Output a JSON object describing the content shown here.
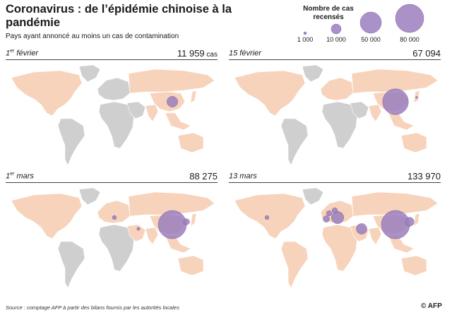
{
  "header": {
    "title": "Coronavirus : de l’épidémie chinoise à la pandémie",
    "subtitle": "Pays ayant annoncé au moins un cas de contamination"
  },
  "legend": {
    "title": "Nombre de cas recensés",
    "entries": [
      {
        "label": "1 000",
        "value": 1000
      },
      {
        "label": "10 000",
        "value": 10000
      },
      {
        "label": "50 000",
        "value": 50000
      },
      {
        "label": "80 000",
        "value": 80000
      }
    ]
  },
  "colors": {
    "affected": "#f7d3bc",
    "unaffected": "#cfcfcf",
    "bubble": "#9b7fbe"
  },
  "panels": [
    {
      "date_day": "1",
      "date_sup": "er",
      "date_month": " février",
      "count": "11 959",
      "unit": " cas"
    },
    {
      "date_day": "15 février",
      "date_sup": "",
      "date_month": "",
      "count": "67 094",
      "unit": ""
    },
    {
      "date_day": "1",
      "date_sup": "er",
      "date_month": " mars",
      "count": "88 275",
      "unit": ""
    },
    {
      "date_day": "13 mars",
      "date_sup": "",
      "date_month": "",
      "count": "133 970",
      "unit": ""
    }
  ],
  "map_data": {
    "countries": [
      "north-america",
      "greenland",
      "south-america",
      "europe",
      "africa",
      "russia-asia",
      "middle-east",
      "india",
      "china",
      "southeast-asia",
      "australia",
      "japan"
    ],
    "affected": [
      [
        "north-america",
        "russia-asia",
        "india",
        "china",
        "southeast-asia",
        "australia",
        "japan"
      ],
      [
        "north-america",
        "russia-asia",
        "india",
        "china",
        "southeast-asia",
        "australia",
        "japan",
        "europe"
      ],
      [
        "north-america",
        "russia-asia",
        "india",
        "china",
        "southeast-asia",
        "australia",
        "japan",
        "europe",
        "middle-east"
      ],
      [
        "north-america",
        "russia-asia",
        "india",
        "china",
        "southeast-asia",
        "australia",
        "japan",
        "europe",
        "middle-east",
        "south-america",
        "africa"
      ]
    ],
    "outbreaks": [
      [
        {
          "place": "China",
          "cases": 11821
        }
      ],
      [
        {
          "place": "China",
          "cases": 66492
        },
        {
          "place": "Japan",
          "cases": 338
        }
      ],
      [
        {
          "place": "China",
          "cases": 79968
        },
        {
          "place": "South Korea",
          "cases": 3736
        },
        {
          "place": "Iran",
          "cases": 978
        },
        {
          "place": "Italy",
          "cases": 1694
        }
      ],
      [
        {
          "place": "China",
          "cases": 80813
        },
        {
          "place": "Italy",
          "cases": 15113
        },
        {
          "place": "Iran",
          "cases": 11364
        },
        {
          "place": "South Korea",
          "cases": 7979
        },
        {
          "place": "Spain",
          "cases": 4231
        },
        {
          "place": "Germany",
          "cases": 3062
        },
        {
          "place": "France",
          "cases": 2876
        },
        {
          "place": "USA",
          "cases": 1629
        }
      ]
    ]
  },
  "footer": {
    "source": "Source : comptage AFP à partir des bilans fournis par les autorités locales",
    "logo": "© AFP"
  }
}
